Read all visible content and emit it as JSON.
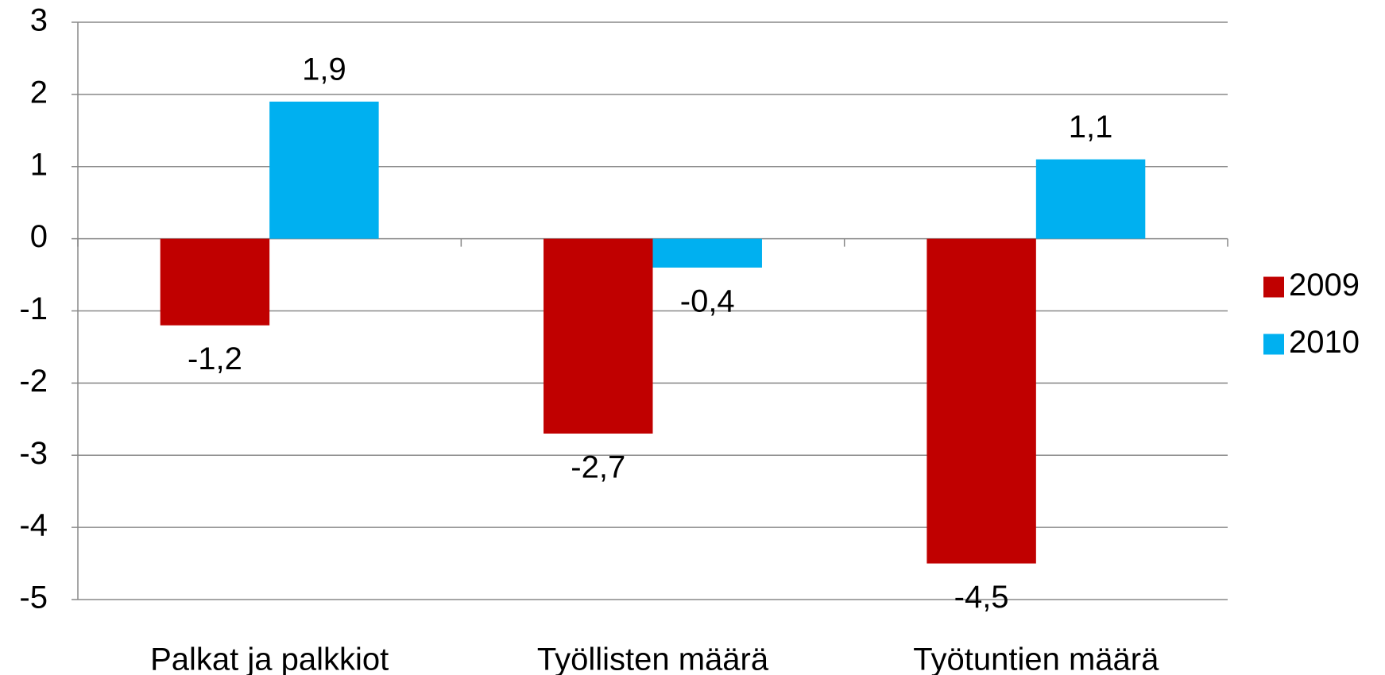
{
  "chart_data": {
    "type": "bar",
    "categories": [
      "Palkat ja palkkiot",
      "Työllisten määrä",
      "Työtuntien määrä"
    ],
    "series": [
      {
        "name": "2009",
        "color": "#c00000",
        "values": [
          -1.2,
          -2.7,
          -4.5
        ],
        "value_labels": [
          "-1,2",
          "-2,7",
          "-4,5"
        ]
      },
      {
        "name": "2010",
        "color": "#00b0f0",
        "values": [
          1.9,
          -0.4,
          1.1
        ],
        "value_labels": [
          "1,9",
          "-0,4",
          "1,1"
        ]
      }
    ],
    "ylim": [
      -5,
      3
    ],
    "yticks": [
      -5,
      -4,
      -3,
      -2,
      -1,
      0,
      1,
      2,
      3
    ],
    "grid": true,
    "legend": "right"
  }
}
